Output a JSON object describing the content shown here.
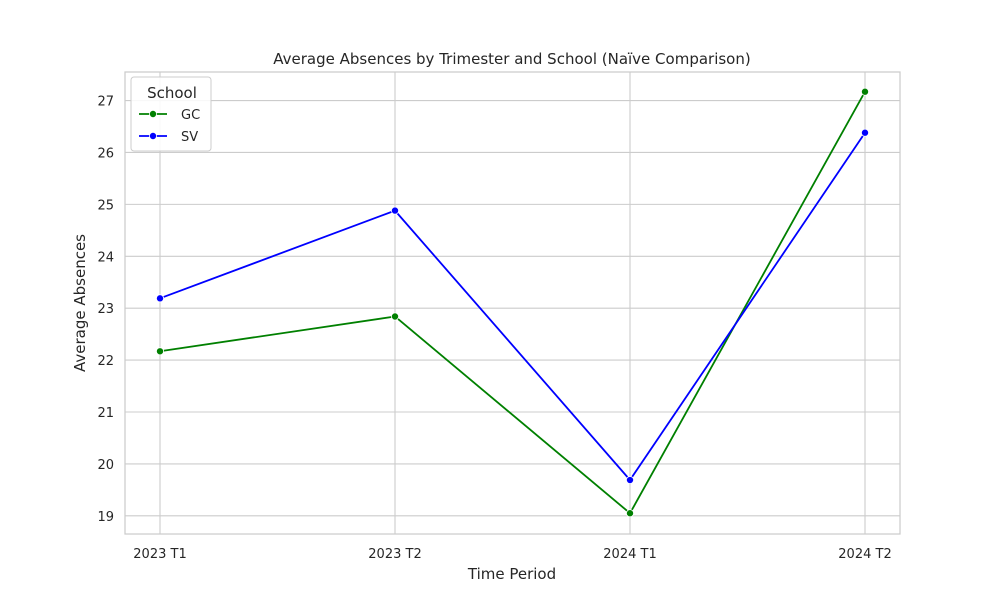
{
  "chart_data": {
    "type": "line",
    "title": "Average Absences by Trimester and School (Naïve Comparison)",
    "xlabel": "Time Period",
    "ylabel": "Average Absences",
    "categories": [
      "2023 T1",
      "2023 T2",
      "2024 T1",
      "2024 T2"
    ],
    "ylim": [
      18.65,
      27.55
    ],
    "yticks": [
      19,
      20,
      21,
      22,
      23,
      24,
      25,
      26,
      27
    ],
    "grid": true,
    "legend": {
      "title": "School",
      "placement": "top-left"
    },
    "series": [
      {
        "name": "GC",
        "color": "#008000",
        "values": [
          22.17,
          22.84,
          19.05,
          27.17
        ]
      },
      {
        "name": "SV",
        "color": "#0000ff",
        "values": [
          23.19,
          24.88,
          19.69,
          26.38
        ]
      }
    ]
  }
}
